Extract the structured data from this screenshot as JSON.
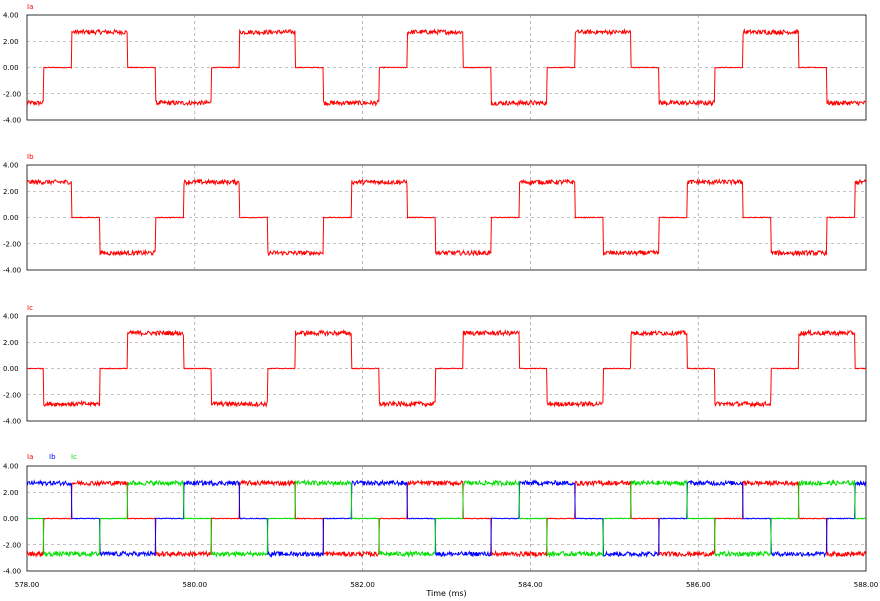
{
  "chart_data": [
    {
      "type": "line",
      "label": "Ia",
      "ylim": [
        -4,
        4
      ],
      "yticks": [
        "4.00",
        "2.00",
        "0.00",
        "-2.00",
        "-4.00"
      ],
      "grid": true,
      "series": [
        {
          "name": "Ia",
          "color": "#ff0000",
          "amplitude": 2.7,
          "phase_deg": 0,
          "shape": "six-step",
          "period_ms": 2.0
        }
      ]
    },
    {
      "type": "line",
      "label": "Ib",
      "ylim": [
        -4,
        4
      ],
      "yticks": [
        "4.00",
        "2.00",
        "0.00",
        "-2.00",
        "-4.00"
      ],
      "grid": true,
      "series": [
        {
          "name": "Ib",
          "color": "#ff0000",
          "amplitude": 2.7,
          "phase_deg": -120,
          "shape": "six-step",
          "period_ms": 2.0
        }
      ]
    },
    {
      "type": "line",
      "label": "Ic",
      "ylim": [
        -4,
        4
      ],
      "yticks": [
        "4.00",
        "2.00",
        "0.00",
        "-2.00",
        "-4.00"
      ],
      "grid": true,
      "series": [
        {
          "name": "Ic",
          "color": "#ff0000",
          "amplitude": 2.7,
          "phase_deg": 120,
          "shape": "six-step",
          "period_ms": 2.0
        }
      ]
    },
    {
      "type": "line",
      "ylim": [
        -4,
        4
      ],
      "yticks": [
        "4.00",
        "2.00",
        "0.00",
        "-2.00",
        "-4.00"
      ],
      "grid": true,
      "series": [
        {
          "name": "Ia",
          "color": "#ff0000",
          "amplitude": 2.7,
          "phase_deg": 0,
          "shape": "six-step",
          "period_ms": 2.0
        },
        {
          "name": "Ib",
          "color": "#0000ff",
          "amplitude": 2.7,
          "phase_deg": -120,
          "shape": "six-step",
          "period_ms": 2.0
        },
        {
          "name": "Ic",
          "color": "#00dd00",
          "amplitude": 2.7,
          "phase_deg": 120,
          "shape": "six-step",
          "period_ms": 2.0
        }
      ]
    }
  ],
  "x_axis": {
    "xlim": [
      578.0,
      588.0
    ],
    "ticks": [
      "578.00",
      "580.00",
      "582.00",
      "584.00",
      "586.00",
      "588.00"
    ],
    "label": "Time (ms)"
  }
}
